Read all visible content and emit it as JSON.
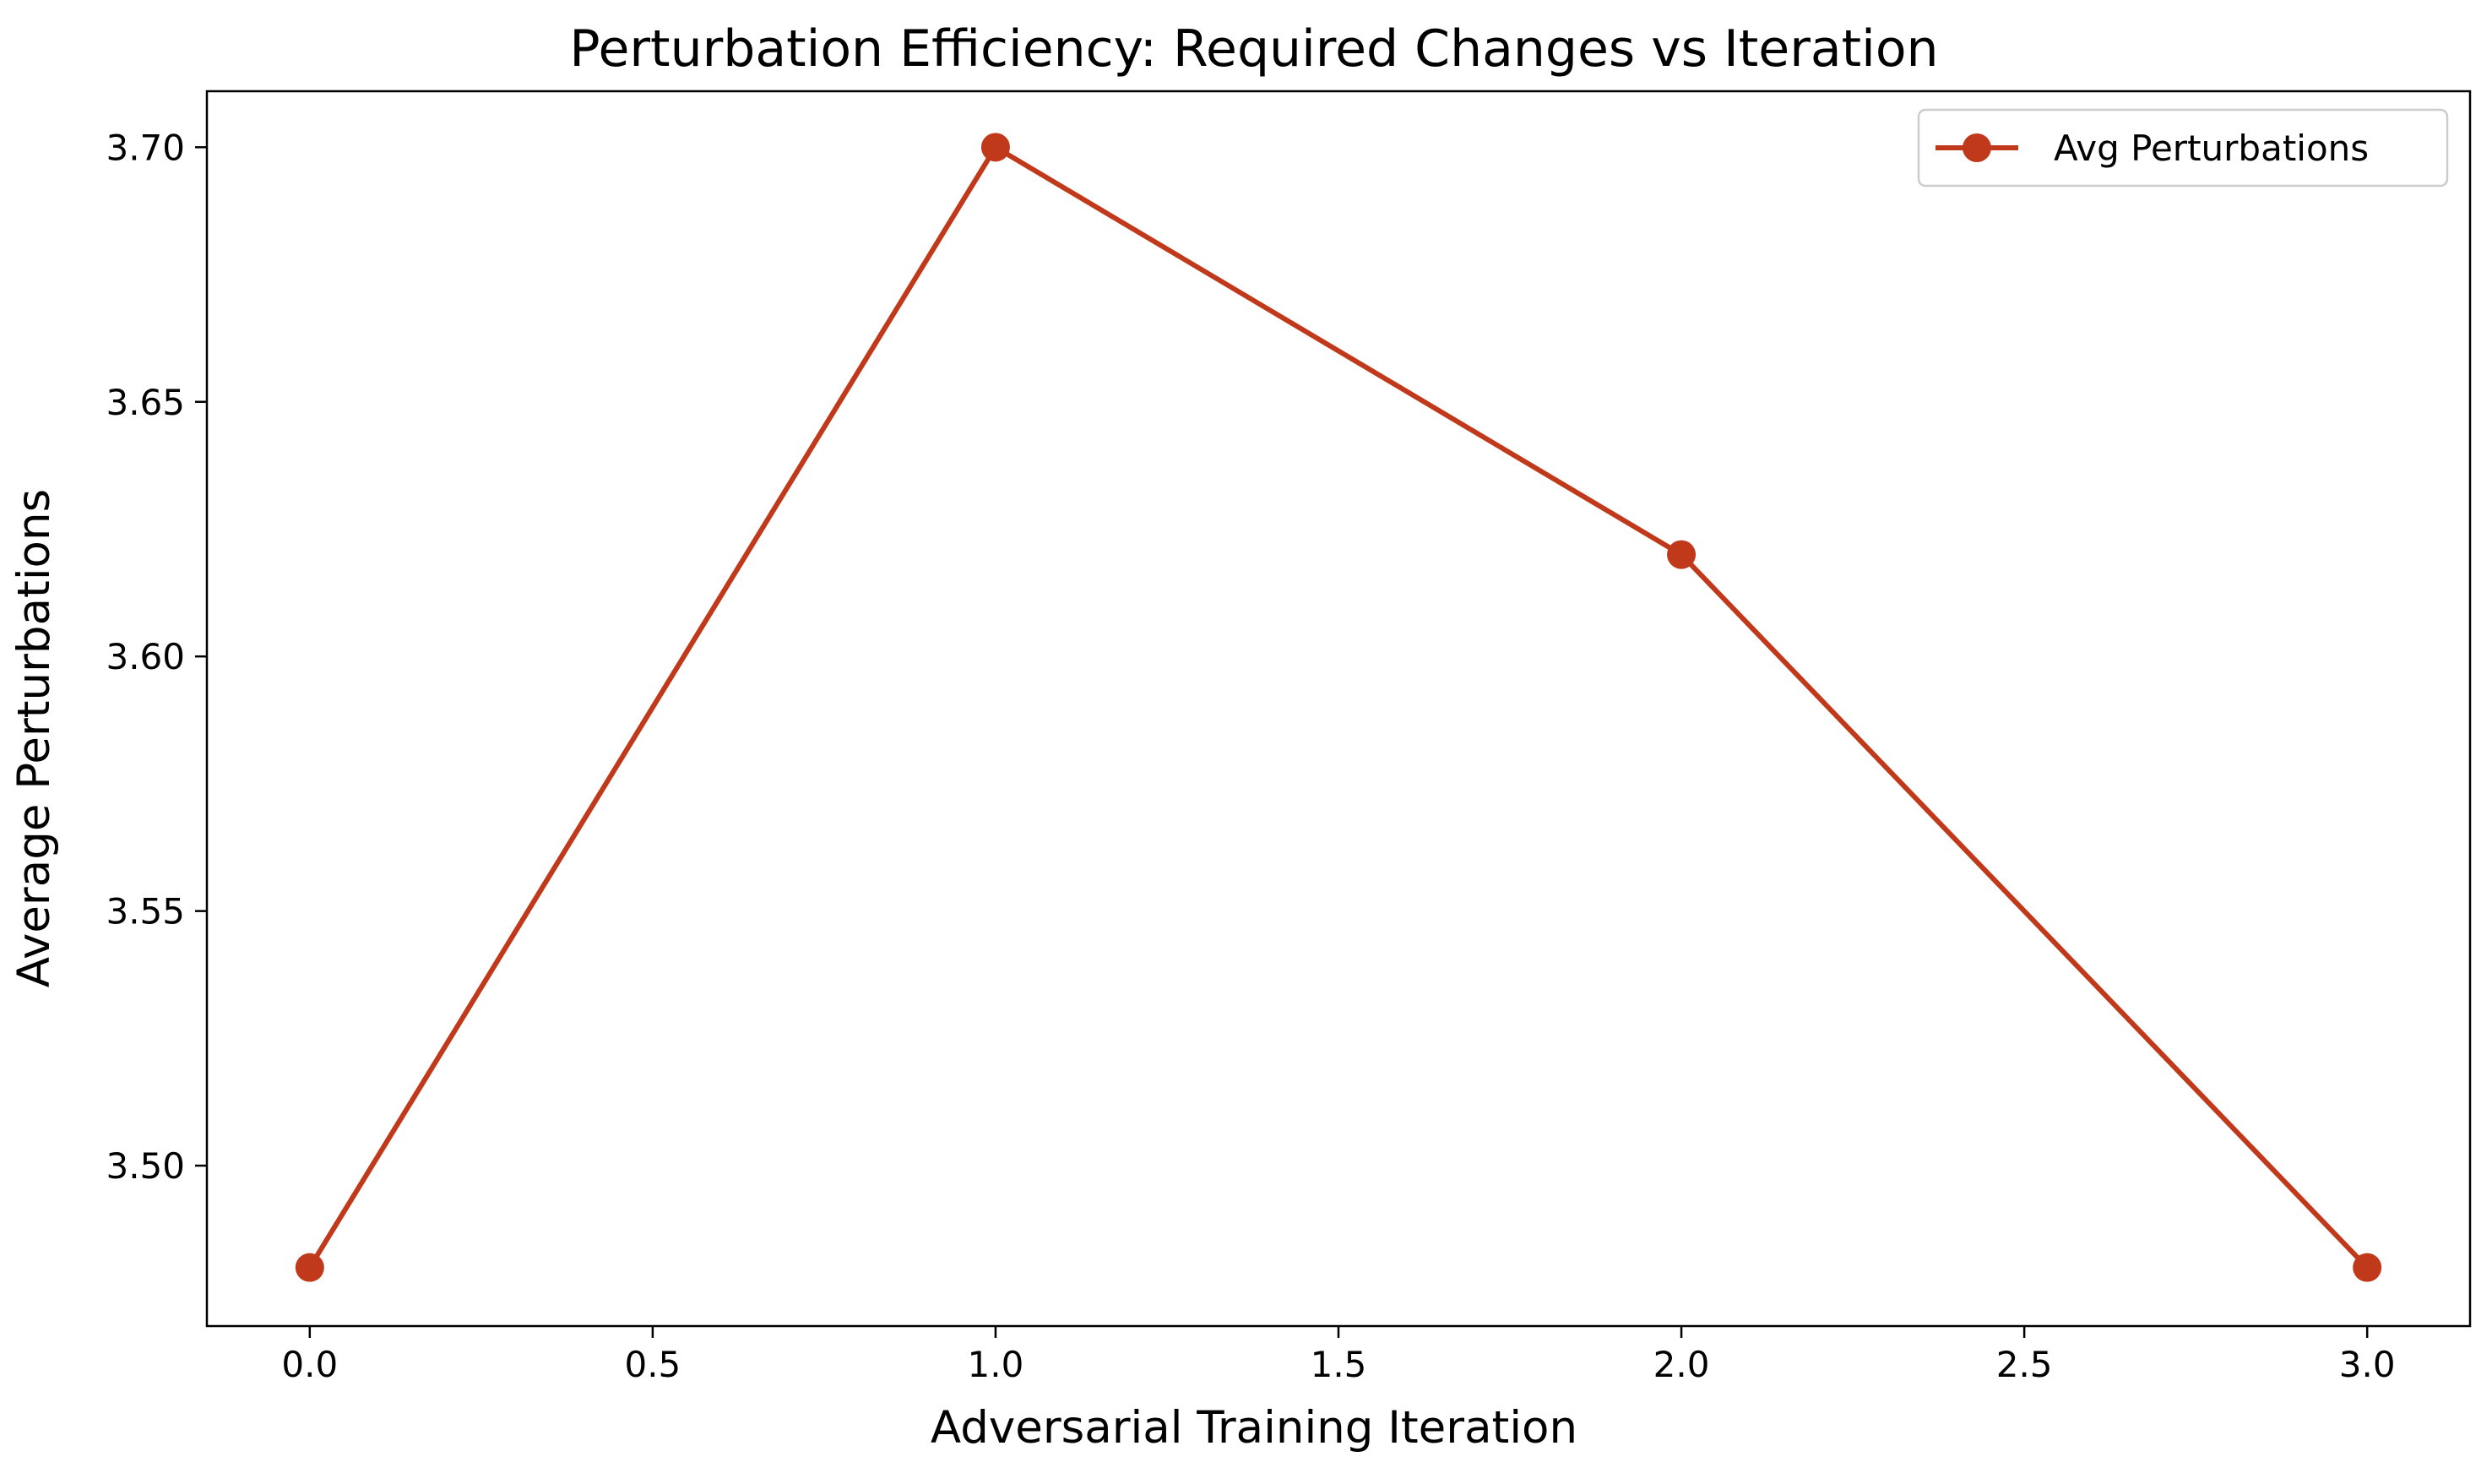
{
  "chart_data": {
    "type": "line",
    "title": "Perturbation Efficiency: Required Changes vs Iteration",
    "xlabel": "Adversarial Training Iteration",
    "ylabel": "Average Perturbations",
    "xlim": [
      -0.15,
      3.15
    ],
    "ylim": [
      3.4685,
      3.711
    ],
    "x_ticks": [
      0.0,
      0.5,
      1.0,
      1.5,
      2.0,
      2.5,
      3.0
    ],
    "x_tick_labels": [
      "0.0",
      "0.5",
      "1.0",
      "1.5",
      "2.0",
      "2.5",
      "3.0"
    ],
    "y_ticks": [
      3.5,
      3.55,
      3.6,
      3.65,
      3.7
    ],
    "y_tick_labels": [
      "3.50",
      "3.55",
      "3.60",
      "3.65",
      "3.70"
    ],
    "grid": false,
    "legend_position": "upper right",
    "series": [
      {
        "name": "Avg Perturbations",
        "color": "#c0391b",
        "marker": "circle",
        "x": [
          0,
          1,
          2,
          3
        ],
        "y": [
          3.48,
          3.7,
          3.62,
          3.48
        ]
      }
    ]
  }
}
